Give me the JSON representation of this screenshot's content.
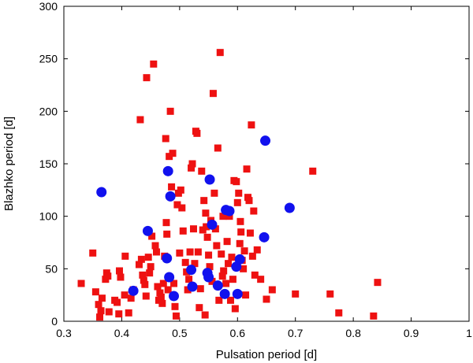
{
  "chart_data": {
    "type": "scatter",
    "title": "",
    "xlabel": "Pulsation period [d]",
    "ylabel": "Blazhko period [d]",
    "xlim": [
      0.3,
      1.0
    ],
    "ylim": [
      0,
      300
    ],
    "xticks": [
      0.3,
      0.4,
      0.5,
      0.6,
      0.7,
      0.8,
      0.9,
      1.0
    ],
    "xtick_labels": [
      "0.3",
      "0.4",
      "0.5",
      "0.6",
      "0.7",
      "0.8",
      "0.9",
      "1"
    ],
    "yticks": [
      0,
      50,
      100,
      150,
      200,
      250,
      300
    ],
    "ytick_labels": [
      "0",
      "50",
      "100",
      "150",
      "200",
      "250",
      "300"
    ],
    "grid": false,
    "series": [
      {
        "name": "squares",
        "marker": "square",
        "color": "#ee1111",
        "points": [
          [
            0.33,
            36
          ],
          [
            0.35,
            65
          ],
          [
            0.355,
            28
          ],
          [
            0.36,
            16
          ],
          [
            0.362,
            4
          ],
          [
            0.364,
            10
          ],
          [
            0.366,
            22
          ],
          [
            0.372,
            40
          ],
          [
            0.374,
            46
          ],
          [
            0.376,
            43
          ],
          [
            0.378,
            9
          ],
          [
            0.388,
            20
          ],
          [
            0.392,
            18
          ],
          [
            0.395,
            7
          ],
          [
            0.396,
            48
          ],
          [
            0.398,
            42
          ],
          [
            0.405,
            25
          ],
          [
            0.406,
            62
          ],
          [
            0.412,
            8
          ],
          [
            0.416,
            22
          ],
          [
            0.42,
            30
          ],
          [
            0.43,
            54
          ],
          [
            0.432,
            192
          ],
          [
            0.434,
            59
          ],
          [
            0.436,
            44
          ],
          [
            0.438,
            39
          ],
          [
            0.44,
            35
          ],
          [
            0.442,
            24
          ],
          [
            0.443,
            232
          ],
          [
            0.446,
            61
          ],
          [
            0.448,
            46
          ],
          [
            0.45,
            52
          ],
          [
            0.452,
            81
          ],
          [
            0.455,
            245
          ],
          [
            0.458,
            72
          ],
          [
            0.46,
            66
          ],
          [
            0.462,
            33
          ],
          [
            0.464,
            20
          ],
          [
            0.466,
            27
          ],
          [
            0.468,
            23
          ],
          [
            0.47,
            17
          ],
          [
            0.472,
            36
          ],
          [
            0.474,
            62
          ],
          [
            0.476,
            174
          ],
          [
            0.477,
            94
          ],
          [
            0.478,
            83
          ],
          [
            0.48,
            30
          ],
          [
            0.482,
            157
          ],
          [
            0.484,
            200
          ],
          [
            0.486,
            128
          ],
          [
            0.488,
            160
          ],
          [
            0.49,
            36
          ],
          [
            0.492,
            14
          ],
          [
            0.494,
            5
          ],
          [
            0.496,
            111
          ],
          [
            0.498,
            122
          ],
          [
            0.5,
            65
          ],
          [
            0.502,
            125
          ],
          [
            0.504,
            108
          ],
          [
            0.506,
            86
          ],
          [
            0.51,
            56
          ],
          [
            0.512,
            47
          ],
          [
            0.514,
            30
          ],
          [
            0.516,
            40
          ],
          [
            0.518,
            66
          ],
          [
            0.52,
            146
          ],
          [
            0.522,
            150
          ],
          [
            0.524,
            88
          ],
          [
            0.526,
            55
          ],
          [
            0.528,
            181
          ],
          [
            0.53,
            179
          ],
          [
            0.532,
            66
          ],
          [
            0.534,
            13
          ],
          [
            0.536,
            31
          ],
          [
            0.538,
            143
          ],
          [
            0.54,
            87
          ],
          [
            0.542,
            115
          ],
          [
            0.544,
            6
          ],
          [
            0.546,
            90
          ],
          [
            0.548,
            80
          ],
          [
            0.55,
            63
          ],
          [
            0.552,
            52
          ],
          [
            0.554,
            96
          ],
          [
            0.556,
            38
          ],
          [
            0.558,
            217
          ],
          [
            0.56,
            122
          ],
          [
            0.562,
            88
          ],
          [
            0.564,
            72
          ],
          [
            0.566,
            165
          ],
          [
            0.568,
            20
          ],
          [
            0.57,
            256
          ],
          [
            0.572,
            64
          ],
          [
            0.574,
            43
          ],
          [
            0.576,
            48
          ],
          [
            0.58,
            36
          ],
          [
            0.582,
            76
          ],
          [
            0.584,
            55
          ],
          [
            0.586,
            100
          ],
          [
            0.588,
            20
          ],
          [
            0.59,
            61
          ],
          [
            0.592,
            40
          ],
          [
            0.594,
            134
          ],
          [
            0.596,
            12
          ],
          [
            0.598,
            133
          ],
          [
            0.6,
            113
          ],
          [
            0.602,
            122
          ],
          [
            0.604,
            74
          ],
          [
            0.606,
            85
          ],
          [
            0.608,
            58
          ],
          [
            0.61,
            50
          ],
          [
            0.612,
            67
          ],
          [
            0.614,
            25
          ],
          [
            0.616,
            145
          ],
          [
            0.618,
            118
          ],
          [
            0.62,
            115
          ],
          [
            0.622,
            84
          ],
          [
            0.624,
            187
          ],
          [
            0.626,
            62
          ],
          [
            0.628,
            105
          ],
          [
            0.63,
            44
          ],
          [
            0.634,
            68
          ],
          [
            0.64,
            40
          ],
          [
            0.65,
            21
          ],
          [
            0.66,
            30
          ],
          [
            0.7,
            26
          ],
          [
            0.73,
            143
          ],
          [
            0.76,
            26
          ],
          [
            0.775,
            8
          ],
          [
            0.835,
            5
          ],
          [
            0.842,
            37
          ],
          [
            0.605,
            95
          ],
          [
            0.575,
            100
          ],
          [
            0.545,
            103
          ]
        ]
      },
      {
        "name": "circles",
        "marker": "circle",
        "color": "#1111ee",
        "points": [
          [
            0.365,
            123
          ],
          [
            0.42,
            29
          ],
          [
            0.445,
            86
          ],
          [
            0.478,
            60
          ],
          [
            0.48,
            143
          ],
          [
            0.482,
            42
          ],
          [
            0.484,
            119
          ],
          [
            0.49,
            24
          ],
          [
            0.52,
            49
          ],
          [
            0.522,
            33
          ],
          [
            0.548,
            46
          ],
          [
            0.55,
            42
          ],
          [
            0.552,
            135
          ],
          [
            0.556,
            92
          ],
          [
            0.566,
            34
          ],
          [
            0.578,
            26
          ],
          [
            0.58,
            106
          ],
          [
            0.586,
            105
          ],
          [
            0.598,
            52
          ],
          [
            0.6,
            26
          ],
          [
            0.604,
            59
          ],
          [
            0.646,
            80
          ],
          [
            0.648,
            172
          ],
          [
            0.69,
            108
          ]
        ]
      }
    ]
  }
}
